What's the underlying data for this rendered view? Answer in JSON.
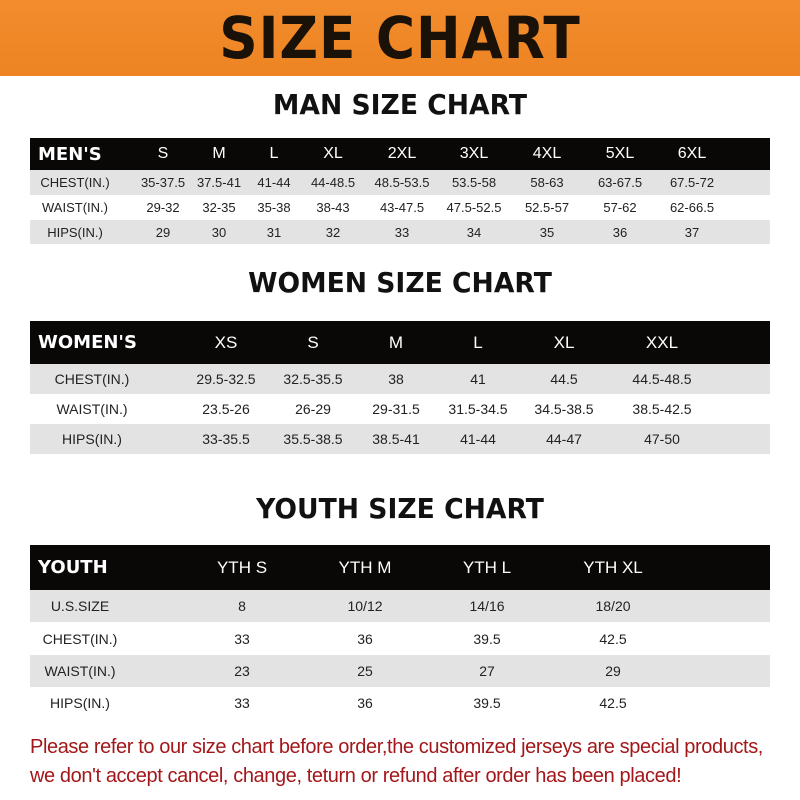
{
  "banner": "SIZE CHART",
  "men": {
    "title": "MAN SIZE CHART",
    "header": [
      "MEN'S",
      "S",
      "M",
      "L",
      "XL",
      "2XL",
      "3XL",
      "4XL",
      "5XL",
      "6XL"
    ],
    "rows": [
      [
        "CHEST(IN.)",
        "35-37.5",
        "37.5-41",
        "41-44",
        "44-48.5",
        "48.5-53.5",
        "53.5-58",
        "58-63",
        "63-67.5",
        "67.5-72"
      ],
      [
        "WAIST(IN.)",
        "29-32",
        "32-35",
        "35-38",
        "38-43",
        "43-47.5",
        "47.5-52.5",
        "52.5-57",
        "57-62",
        "62-66.5"
      ],
      [
        "HIPS(IN.)",
        "29",
        "30",
        "31",
        "32",
        "33",
        "34",
        "35",
        "36",
        "37"
      ]
    ]
  },
  "women": {
    "title": "WOMEN SIZE CHART",
    "header": [
      "WOMEN'S",
      "XS",
      "S",
      "M",
      "L",
      "XL",
      "XXL"
    ],
    "rows": [
      [
        "CHEST(IN.)",
        "29.5-32.5",
        "32.5-35.5",
        "38",
        "41",
        "44.5",
        "44.5-48.5"
      ],
      [
        "WAIST(IN.)",
        "23.5-26",
        "26-29",
        "29-31.5",
        "31.5-34.5",
        "34.5-38.5",
        "38.5-42.5"
      ],
      [
        "HIPS(IN.)",
        "33-35.5",
        "35.5-38.5",
        "38.5-41",
        "41-44",
        "44-47",
        "47-50"
      ]
    ]
  },
  "youth": {
    "title": "YOUTH SIZE CHART",
    "header": [
      "YOUTH",
      "YTH S",
      "YTH M",
      "YTH L",
      "YTH XL"
    ],
    "rows": [
      [
        "U.S.SIZE",
        "8",
        "10/12",
        "14/16",
        "18/20"
      ],
      [
        "CHEST(IN.)",
        "33",
        "36",
        "39.5",
        "42.5"
      ],
      [
        "WAIST(IN.)",
        "23",
        "25",
        "27",
        "29"
      ],
      [
        "HIPS(IN.)",
        "33",
        "36",
        "39.5",
        "42.5"
      ]
    ]
  },
  "note": "Please refer to our size chart before order,the customized jerseys are special products, we don't accept cancel, change, teturn or refund after order has been placed!",
  "colors": {
    "banner": "#f08a2a",
    "header_row": "#0a0707",
    "stripe": "#e3e3e3",
    "note": "#a3171a"
  }
}
